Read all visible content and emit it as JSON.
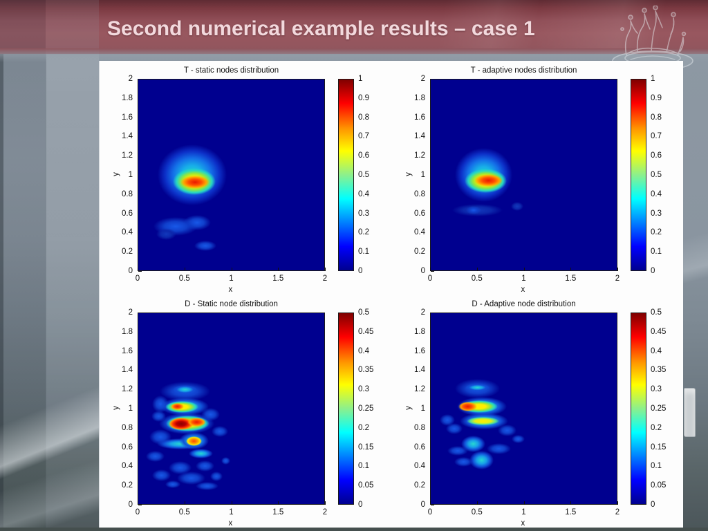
{
  "slide": {
    "title": "Second numerical example results – case 1"
  },
  "colors": {
    "banner_red": "#8e4049",
    "title_text": "#f2d9dd",
    "plot_background": "#00008f",
    "panel_background": "#fdfdfd",
    "colormap": "jet"
  },
  "icons": {
    "crown_watermark": "water-splash-crown"
  },
  "chart_data": [
    {
      "type": "heatmap",
      "title": "T - static nodes distribution",
      "xlabel": "x",
      "ylabel": "y",
      "xlim": [
        0,
        2
      ],
      "ylim": [
        0,
        2
      ],
      "grid": false,
      "xticks": [
        "0",
        "0.5",
        "1",
        "1.5",
        "2"
      ],
      "yticks": [
        "2",
        "1.8",
        "1.6",
        "1.4",
        "1.2",
        "1",
        "0.8",
        "0.6",
        "0.4",
        "0.2",
        "0"
      ],
      "colorbar": {
        "min": 0,
        "max": 1,
        "position": "right",
        "ticks": [
          "1",
          "0.9",
          "0.8",
          "0.7",
          "0.6",
          "0.5",
          "0.4",
          "0.3",
          "0.2",
          "0.1",
          "0"
        ]
      },
      "peak": {
        "x": 0.61,
        "y": 0.93,
        "value": 0.95
      },
      "blobs": [
        {
          "kind": "halo",
          "cx": 0.58,
          "cy": 1.0,
          "rx": 0.37,
          "ry": 0.32
        },
        {
          "kind": "ring-yellow",
          "cx": 0.6,
          "cy": 0.93,
          "rx": 0.23,
          "ry": 0.14
        },
        {
          "kind": "core-red",
          "cx": 0.61,
          "cy": 0.925,
          "rx": 0.155,
          "ry": 0.07
        },
        {
          "kind": "patch-blue",
          "cx": 0.4,
          "cy": 0.46,
          "rx": 0.24,
          "ry": 0.1
        },
        {
          "kind": "patch-blue",
          "cx": 0.63,
          "cy": 0.5,
          "rx": 0.15,
          "ry": 0.08
        },
        {
          "kind": "patch-faint",
          "cx": 0.3,
          "cy": 0.38,
          "rx": 0.11,
          "ry": 0.06
        },
        {
          "kind": "patch-blue",
          "cx": 0.72,
          "cy": 0.26,
          "rx": 0.12,
          "ry": 0.055
        }
      ]
    },
    {
      "type": "heatmap",
      "title": "T - adaptive nodes distribution",
      "xlabel": "x",
      "ylabel": "y",
      "xlim": [
        0,
        2
      ],
      "ylim": [
        0,
        2
      ],
      "grid": false,
      "xticks": [
        "0",
        "0.5",
        "1",
        "1.5",
        "2"
      ],
      "yticks": [
        "2",
        "1.8",
        "1.6",
        "1.4",
        "1.2",
        "1",
        "0.8",
        "0.6",
        "0.4",
        "0.2",
        "0"
      ],
      "colorbar": {
        "min": 0,
        "max": 1,
        "position": "right",
        "ticks": [
          "1",
          "0.9",
          "0.8",
          "0.7",
          "0.6",
          "0.5",
          "0.4",
          "0.3",
          "0.2",
          "0.1",
          "0"
        ]
      },
      "peak": {
        "x": 0.62,
        "y": 0.94,
        "value": 0.95
      },
      "blobs": [
        {
          "kind": "halo",
          "cx": 0.57,
          "cy": 1.0,
          "rx": 0.31,
          "ry": 0.28
        },
        {
          "kind": "ring-yellow",
          "cx": 0.59,
          "cy": 0.94,
          "rx": 0.225,
          "ry": 0.125
        },
        {
          "kind": "core-red",
          "cx": 0.62,
          "cy": 0.94,
          "rx": 0.15,
          "ry": 0.065
        },
        {
          "kind": "patch-faint",
          "cx": 0.5,
          "cy": 0.63,
          "rx": 0.27,
          "ry": 0.065
        },
        {
          "kind": "patch-blue",
          "cx": 0.46,
          "cy": 0.63,
          "rx": 0.08,
          "ry": 0.045
        },
        {
          "kind": "patch-faint",
          "cx": 0.93,
          "cy": 0.67,
          "rx": 0.07,
          "ry": 0.045
        }
      ]
    },
    {
      "type": "heatmap",
      "title": "D - Static node distribution",
      "xlabel": "x",
      "ylabel": "y",
      "xlim": [
        0,
        2
      ],
      "ylim": [
        0,
        2
      ],
      "grid": false,
      "xticks": [
        "0",
        "0.5",
        "1",
        "1.5",
        "2"
      ],
      "yticks": [
        "2",
        "1.8",
        "1.6",
        "1.4",
        "1.2",
        "1",
        "0.8",
        "0.6",
        "0.4",
        "0.2",
        "0"
      ],
      "colorbar": {
        "min": 0,
        "max": 0.5,
        "position": "right",
        "ticks": [
          "0.5",
          "0.45",
          "0.4",
          "0.35",
          "0.3",
          "0.25",
          "0.2",
          "0.15",
          "0.1",
          "0.05",
          "0"
        ]
      },
      "peak": {
        "x": 0.46,
        "y": 0.84,
        "value": 0.5
      },
      "blobs": [
        {
          "kind": "patch-blue",
          "cx": 0.5,
          "cy": 1.18,
          "rx": 0.27,
          "ry": 0.1
        },
        {
          "kind": "patch-cyan",
          "cx": 0.5,
          "cy": 1.2,
          "rx": 0.13,
          "ry": 0.045
        },
        {
          "kind": "patch-blue",
          "cx": 0.24,
          "cy": 1.05,
          "rx": 0.09,
          "ry": 0.09
        },
        {
          "kind": "patch-cyan",
          "cx": 0.5,
          "cy": 1.02,
          "rx": 0.26,
          "ry": 0.095
        },
        {
          "kind": "ring-yellow",
          "cx": 0.47,
          "cy": 1.02,
          "rx": 0.18,
          "ry": 0.06
        },
        {
          "kind": "core-red",
          "cx": 0.42,
          "cy": 1.02,
          "rx": 0.07,
          "ry": 0.035
        },
        {
          "kind": "patch-blue",
          "cx": 0.22,
          "cy": 0.92,
          "rx": 0.08,
          "ry": 0.06
        },
        {
          "kind": "patch-blue",
          "cx": 0.78,
          "cy": 0.94,
          "rx": 0.1,
          "ry": 0.07
        },
        {
          "kind": "patch-cyan",
          "cx": 0.52,
          "cy": 0.845,
          "rx": 0.3,
          "ry": 0.115
        },
        {
          "kind": "ring-yellow",
          "cx": 0.53,
          "cy": 0.845,
          "rx": 0.235,
          "ry": 0.085
        },
        {
          "kind": "core-hot",
          "cx": 0.46,
          "cy": 0.84,
          "rx": 0.135,
          "ry": 0.065
        },
        {
          "kind": "core-red",
          "cx": 0.63,
          "cy": 0.86,
          "rx": 0.1,
          "ry": 0.045
        },
        {
          "kind": "patch-blue",
          "cx": 0.88,
          "cy": 0.76,
          "rx": 0.09,
          "ry": 0.06
        },
        {
          "kind": "patch-blue",
          "cx": 0.24,
          "cy": 0.7,
          "rx": 0.12,
          "ry": 0.08
        },
        {
          "kind": "patch-cyan",
          "cx": 0.45,
          "cy": 0.63,
          "rx": 0.25,
          "ry": 0.06
        },
        {
          "kind": "patch-cyan",
          "cx": 0.6,
          "cy": 0.665,
          "rx": 0.16,
          "ry": 0.09
        },
        {
          "kind": "core-orange",
          "cx": 0.6,
          "cy": 0.66,
          "rx": 0.085,
          "ry": 0.05
        },
        {
          "kind": "patch-blue",
          "cx": 0.18,
          "cy": 0.5,
          "rx": 0.1,
          "ry": 0.06
        },
        {
          "kind": "patch-cyan",
          "cx": 0.67,
          "cy": 0.53,
          "rx": 0.13,
          "ry": 0.05
        },
        {
          "kind": "patch-blue",
          "cx": 0.45,
          "cy": 0.38,
          "rx": 0.12,
          "ry": 0.07
        },
        {
          "kind": "patch-blue",
          "cx": 0.72,
          "cy": 0.4,
          "rx": 0.1,
          "ry": 0.06
        },
        {
          "kind": "patch-blue",
          "cx": 0.94,
          "cy": 0.45,
          "rx": 0.05,
          "ry": 0.04
        },
        {
          "kind": "patch-blue",
          "cx": 0.25,
          "cy": 0.3,
          "rx": 0.1,
          "ry": 0.06
        },
        {
          "kind": "patch-blue",
          "cx": 0.57,
          "cy": 0.27,
          "rx": 0.15,
          "ry": 0.07
        },
        {
          "kind": "patch-blue",
          "cx": 0.84,
          "cy": 0.29,
          "rx": 0.07,
          "ry": 0.05
        },
        {
          "kind": "patch-blue",
          "cx": 0.37,
          "cy": 0.21,
          "rx": 0.08,
          "ry": 0.04
        },
        {
          "kind": "patch-blue",
          "cx": 0.74,
          "cy": 0.19,
          "rx": 0.12,
          "ry": 0.045
        }
      ]
    },
    {
      "type": "heatmap",
      "title": "D - Adaptive node distribution",
      "xlabel": "x",
      "ylabel": "y",
      "xlim": [
        0,
        2
      ],
      "ylim": [
        0,
        2
      ],
      "grid": false,
      "xticks": [
        "0",
        "0.5",
        "1",
        "1.5",
        "2"
      ],
      "yticks": [
        "2",
        "1.8",
        "1.6",
        "1.4",
        "1.2",
        "1",
        "0.8",
        "0.6",
        "0.4",
        "0.2",
        "0"
      ],
      "colorbar": {
        "min": 0,
        "max": 0.5,
        "position": "right",
        "ticks": [
          "0.5",
          "0.45",
          "0.4",
          "0.35",
          "0.3",
          "0.25",
          "0.2",
          "0.15",
          "0.1",
          "0.05",
          "0"
        ]
      },
      "peak": {
        "x": 0.4,
        "y": 1.02,
        "value": 0.45
      },
      "blobs": [
        {
          "kind": "patch-blue",
          "cx": 0.5,
          "cy": 1.21,
          "rx": 0.24,
          "ry": 0.105
        },
        {
          "kind": "patch-cyan",
          "cx": 0.5,
          "cy": 1.22,
          "rx": 0.13,
          "ry": 0.04
        },
        {
          "kind": "patch-cyan",
          "cx": 0.55,
          "cy": 1.02,
          "rx": 0.27,
          "ry": 0.1
        },
        {
          "kind": "ring-yellow",
          "cx": 0.52,
          "cy": 1.02,
          "rx": 0.2,
          "ry": 0.065
        },
        {
          "kind": "core-red",
          "cx": 0.4,
          "cy": 1.02,
          "rx": 0.1,
          "ry": 0.05
        },
        {
          "kind": "patch-blue",
          "cx": 0.18,
          "cy": 0.88,
          "rx": 0.08,
          "ry": 0.06
        },
        {
          "kind": "patch-cyan",
          "cx": 0.57,
          "cy": 0.87,
          "rx": 0.26,
          "ry": 0.09
        },
        {
          "kind": "core-yellow",
          "cx": 0.56,
          "cy": 0.87,
          "rx": 0.175,
          "ry": 0.045
        },
        {
          "kind": "patch-blue",
          "cx": 0.25,
          "cy": 0.79,
          "rx": 0.09,
          "ry": 0.055
        },
        {
          "kind": "patch-blue",
          "cx": 0.82,
          "cy": 0.77,
          "rx": 0.1,
          "ry": 0.06
        },
        {
          "kind": "patch-blue",
          "cx": 0.94,
          "cy": 0.68,
          "rx": 0.07,
          "ry": 0.045
        },
        {
          "kind": "patch-cyan",
          "cx": 0.46,
          "cy": 0.63,
          "rx": 0.13,
          "ry": 0.085
        },
        {
          "kind": "patch-blue",
          "cx": 0.29,
          "cy": 0.56,
          "rx": 0.11,
          "ry": 0.05
        },
        {
          "kind": "patch-blue",
          "cx": 0.73,
          "cy": 0.58,
          "rx": 0.13,
          "ry": 0.06
        },
        {
          "kind": "patch-cyan",
          "cx": 0.55,
          "cy": 0.46,
          "rx": 0.13,
          "ry": 0.095
        },
        {
          "kind": "patch-blue",
          "cx": 0.35,
          "cy": 0.44,
          "rx": 0.1,
          "ry": 0.05
        }
      ]
    }
  ]
}
